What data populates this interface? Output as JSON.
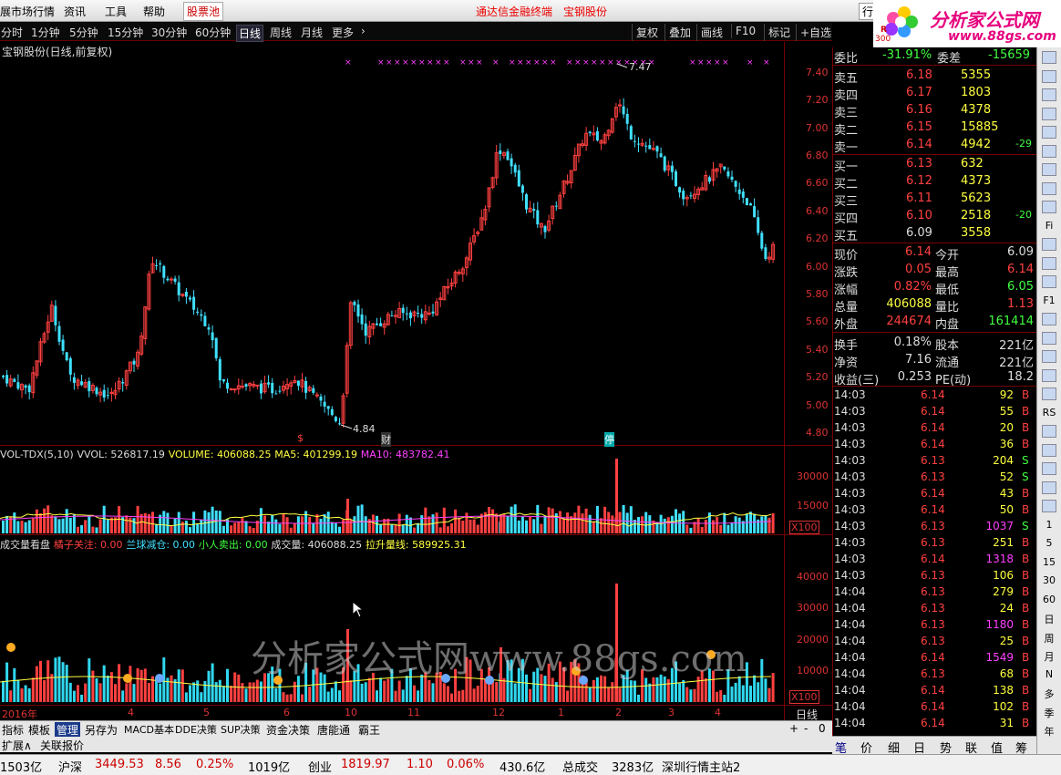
{
  "menu": {
    "items": [
      "展市场行情",
      "资讯",
      "工具",
      "帮助"
    ],
    "stock_pool": "股票池",
    "center_items": [
      "通达信金融终端",
      "宝钢股份"
    ],
    "hq_button": "行情"
  },
  "logo": {
    "name": "分析家公式网",
    "url": "www.88gs.com",
    "badge_r": "R",
    "badge_num": "300"
  },
  "periods": {
    "items": [
      "分时",
      "1分钟",
      "5分钟",
      "15分钟",
      "30分钟",
      "60分钟",
      "日线",
      "周线",
      "月线",
      "更多"
    ],
    "active": "日线",
    "tools": [
      "复权",
      "叠加",
      "画线",
      "F10",
      "标记",
      "+自选"
    ]
  },
  "chart_title": "宝钢股份(日线,前复权)",
  "price_axis": [
    "7.40",
    "7.20",
    "7.00",
    "6.80",
    "6.60",
    "6.40",
    "6.20",
    "6.00",
    "5.80",
    "5.60",
    "5.40",
    "5.20",
    "5.00",
    "4.80"
  ],
  "price_annotations": {
    "high": "7.47",
    "low": "4.84",
    "markers": [
      "$",
      "财",
      "停"
    ]
  },
  "vol_title": {
    "name": "VOL-TDX(5,10)",
    "vvol": "VVOL: 526817.19",
    "volume": "VOLUME: 406088.25",
    "ma5": "MA5: 401299.19",
    "ma10": "MA10: 483782.41"
  },
  "vol_axis": [
    "30000",
    "15000"
  ],
  "vol_unit": "X100",
  "ind_title": {
    "name": "成交量看盘",
    "a": "橘子关注: 0.00",
    "b": "兰球减仓: 0.00",
    "c": "小人卖出: 0.00",
    "d": "成交量: 406088.25",
    "e": "拉升量线: 589925.31"
  },
  "ind_axis": [
    "40000",
    "30000",
    "20000",
    "10000"
  ],
  "ind_unit": "X100",
  "date_axis": [
    "2016年",
    "4",
    "5",
    "6",
    "10",
    "11",
    "12",
    "1",
    "2",
    "3",
    "4"
  ],
  "date_axis_end": "日线",
  "bottom_tabs": [
    "指标",
    "模板",
    "管理",
    "另存为",
    "MACD基本",
    "DDE决策",
    "SUP决策",
    "资金决策",
    "唐能通",
    "霸王"
  ],
  "bottom_tabs_active": "管理",
  "bottom_controls": [
    "+",
    "-",
    "0"
  ],
  "bottom_tabs2": [
    "扩展∧",
    "关联报价"
  ],
  "quote": {
    "weibi_label": "委比",
    "weibi": "-31.91%",
    "weicha_label": "委差",
    "weicha": "-15659",
    "asks": [
      {
        "label": "卖五",
        "price": "6.18",
        "vol": "5355",
        "chg": ""
      },
      {
        "label": "卖四",
        "price": "6.17",
        "vol": "1803",
        "chg": ""
      },
      {
        "label": "卖三",
        "price": "6.16",
        "vol": "4378",
        "chg": ""
      },
      {
        "label": "卖二",
        "price": "6.15",
        "vol": "15885",
        "chg": ""
      },
      {
        "label": "卖一",
        "price": "6.14",
        "vol": "4942",
        "chg": "-29"
      }
    ],
    "bids": [
      {
        "label": "买一",
        "price": "6.13",
        "vol": "632",
        "chg": ""
      },
      {
        "label": "买二",
        "price": "6.12",
        "vol": "4373",
        "chg": ""
      },
      {
        "label": "买三",
        "price": "6.11",
        "vol": "5623",
        "chg": ""
      },
      {
        "label": "买四",
        "price": "6.10",
        "vol": "2518",
        "chg": "-20"
      },
      {
        "label": "买五",
        "price": "6.09",
        "vol": "3558",
        "chg": ""
      }
    ],
    "stats": [
      {
        "l1": "现价",
        "v1": "6.14",
        "l2": "今开",
        "v2": "6.09"
      },
      {
        "l1": "涨跌",
        "v1": "0.05",
        "l2": "最高",
        "v2": "6.14"
      },
      {
        "l1": "涨幅",
        "v1": "0.82%",
        "l2": "最低",
        "v2": "6.05"
      },
      {
        "l1": "总量",
        "v1": "406088",
        "l2": "量比",
        "v2": "1.13"
      },
      {
        "l1": "外盘",
        "v1": "244674",
        "l2": "内盘",
        "v2": "161414"
      },
      {
        "l1": "换手",
        "v1": "0.18%",
        "l2": "股本",
        "v2": "221亿"
      },
      {
        "l1": "净资",
        "v1": "7.16",
        "l2": "流通",
        "v2": "221亿"
      },
      {
        "l1": "收益(三)",
        "v1": "0.253",
        "l2": "PE(动)",
        "v2": "18.2"
      }
    ]
  },
  "ticks": [
    {
      "t": "14:03",
      "p": "6.14",
      "v": "92",
      "bs": "B"
    },
    {
      "t": "14:03",
      "p": "6.14",
      "v": "55",
      "bs": "B"
    },
    {
      "t": "14:03",
      "p": "6.14",
      "v": "20",
      "bs": "B"
    },
    {
      "t": "14:03",
      "p": "6.14",
      "v": "36",
      "bs": "B"
    },
    {
      "t": "14:03",
      "p": "6.13",
      "v": "204",
      "bs": "S"
    },
    {
      "t": "14:03",
      "p": "6.13",
      "v": "52",
      "bs": "S"
    },
    {
      "t": "14:03",
      "p": "6.14",
      "v": "43",
      "bs": "B"
    },
    {
      "t": "14:03",
      "p": "6.14",
      "v": "50",
      "bs": "B"
    },
    {
      "t": "14:03",
      "p": "6.13",
      "v": "1037",
      "bs": "S"
    },
    {
      "t": "14:03",
      "p": "6.13",
      "v": "251",
      "bs": "B"
    },
    {
      "t": "14:03",
      "p": "6.14",
      "v": "1318",
      "bs": "B"
    },
    {
      "t": "14:03",
      "p": "6.13",
      "v": "106",
      "bs": "B"
    },
    {
      "t": "14:04",
      "p": "6.13",
      "v": "279",
      "bs": "B"
    },
    {
      "t": "14:04",
      "p": "6.13",
      "v": "24",
      "bs": "B"
    },
    {
      "t": "14:04",
      "p": "6.13",
      "v": "1180",
      "bs": "B"
    },
    {
      "t": "14:04",
      "p": "6.13",
      "v": "25",
      "bs": "B"
    },
    {
      "t": "14:04",
      "p": "6.14",
      "v": "1549",
      "bs": "B"
    },
    {
      "t": "14:04",
      "p": "6.13",
      "v": "68",
      "bs": "B"
    },
    {
      "t": "14:04",
      "p": "6.14",
      "v": "138",
      "bs": "B"
    },
    {
      "t": "14:04",
      "p": "6.14",
      "v": "102",
      "bs": "B"
    },
    {
      "t": "14:04",
      "p": "6.14",
      "v": "31",
      "bs": "B"
    }
  ],
  "rp_tabs": [
    "笔",
    "价",
    "细",
    "日",
    "势",
    "联",
    "值",
    "筹"
  ],
  "sidebar": [
    "",
    "",
    "",
    "",
    "",
    "",
    "",
    "",
    "",
    "Fi",
    "",
    "",
    "",
    "F1",
    "",
    "",
    "",
    "",
    "",
    "RS",
    "",
    "",
    "",
    "",
    "",
    "1",
    "5",
    "15",
    "30",
    "60",
    "日",
    "周",
    "月",
    "N",
    "多",
    "季",
    "年"
  ],
  "status": {
    "items": [
      "1503亿",
      "沪深",
      "3449.53",
      "8.56",
      "0.25%",
      "1019亿",
      "创业",
      "1819.97",
      "1.10",
      "0.06%",
      "430.6亿",
      "总成交",
      "3283亿",
      "深圳行情主站2"
    ]
  },
  "watermark": "分析家公式网www.88gs.com",
  "colors": {
    "up": "#ff4040",
    "down": "#40e0ff",
    "yellow": "#ffff40",
    "magenta": "#ff40ff",
    "green": "#40ff40"
  }
}
